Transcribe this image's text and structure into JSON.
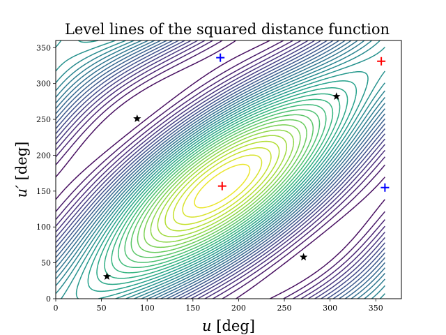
{
  "chart_data": {
    "type": "contour",
    "title": "Level lines of the squared distance function",
    "xlabel": "u [deg]",
    "ylabel": "u′ [deg]",
    "xlabel_main": "u",
    "xlabel_unit": "[deg]",
    "ylabel_main": "u′",
    "ylabel_unit": "[deg]",
    "xlim": [
      0,
      378
    ],
    "ylim": [
      0,
      360
    ],
    "xticks": [
      0,
      50,
      100,
      150,
      200,
      250,
      300,
      350
    ],
    "yticks": [
      0,
      50,
      100,
      150,
      200,
      250,
      300,
      350
    ],
    "grid": false,
    "colormap": "viridis",
    "stars": [
      {
        "u": 56,
        "v": 31
      },
      {
        "u": 89,
        "v": 251
      },
      {
        "u": 271,
        "v": 58
      },
      {
        "u": 307,
        "v": 282
      }
    ],
    "red_plus": [
      {
        "u": 182,
        "v": 157
      },
      {
        "u": 356,
        "v": 331
      }
    ],
    "blue_plus": [
      {
        "u": 180,
        "v": 336
      },
      {
        "u": 360,
        "v": 155
      }
    ],
    "colors": {
      "star": "#000000",
      "red_plus": "#ff0000",
      "blue_plus": "#0000ff"
    }
  }
}
